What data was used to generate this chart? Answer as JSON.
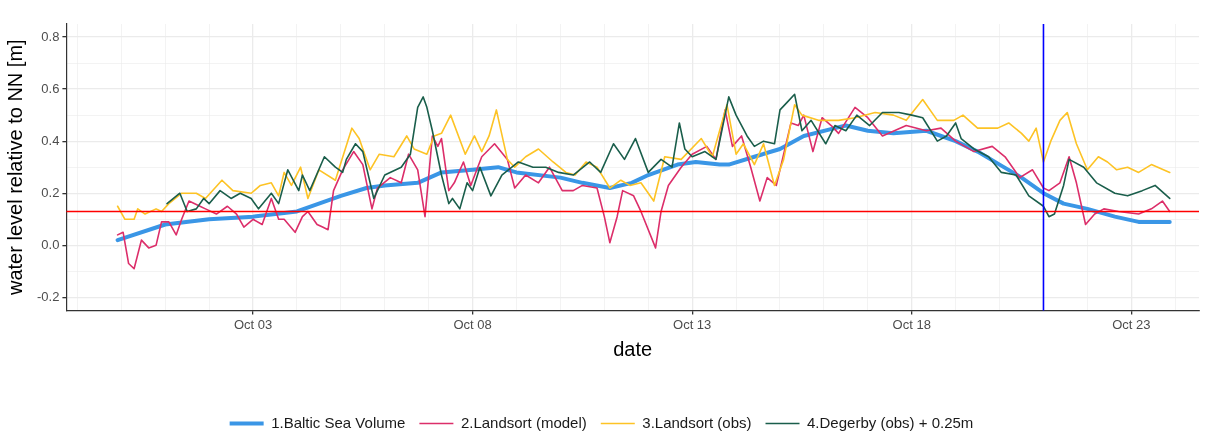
{
  "chart_data": {
    "type": "line",
    "xlabel": "date",
    "ylabel": "water level relative to NN [m]",
    "xlim": [
      "--09-28T18:00",
      "--10-24T13:00"
    ],
    "xticks": [
      {
        "value": "--09-29",
        "label": null
      },
      {
        "value": "--09-30",
        "label": null
      },
      {
        "value": "--10-01",
        "label": null
      },
      {
        "value": "--10-02",
        "label": null
      },
      {
        "value": "--10-03",
        "label": "Oct 03"
      },
      {
        "value": "--10-04",
        "label": null
      },
      {
        "value": "--10-05",
        "label": null
      },
      {
        "value": "--10-06",
        "label": null
      },
      {
        "value": "--10-07",
        "label": null
      },
      {
        "value": "--10-08",
        "label": "Oct 08"
      },
      {
        "value": "--10-09",
        "label": null
      },
      {
        "value": "--10-10",
        "label": null
      },
      {
        "value": "--10-11",
        "label": null
      },
      {
        "value": "--10-12",
        "label": null
      },
      {
        "value": "--10-13",
        "label": "Oct 13"
      },
      {
        "value": "--10-14",
        "label": null
      },
      {
        "value": "--10-15",
        "label": null
      },
      {
        "value": "--10-16",
        "label": null
      },
      {
        "value": "--10-17",
        "label": null
      },
      {
        "value": "--10-18",
        "label": "Oct 18"
      },
      {
        "value": "--10-19",
        "label": null
      },
      {
        "value": "--10-20",
        "label": null
      },
      {
        "value": "--10-21",
        "label": null
      },
      {
        "value": "--10-22",
        "label": null
      },
      {
        "value": "--10-23",
        "label": "Oct 23"
      },
      {
        "value": "--10-24",
        "label": null
      }
    ],
    "ylim": [
      -0.25,
      0.85
    ],
    "yticks": [
      -0.2,
      {
        "value": -0.1,
        "label": null
      },
      {
        "value": 0,
        "label": "0.0"
      },
      {
        "value": 0.1,
        "label": null
      },
      0.2,
      {
        "value": 0.3,
        "label": null
      },
      0.4,
      {
        "value": 0.5,
        "label": null
      },
      0.6,
      {
        "value": 0.7,
        "label": null
      },
      0.8
    ],
    "grid": true,
    "legend": "bottom",
    "marker": "none",
    "line_style": "solid",
    "ref_lines": [
      {
        "axis": "y",
        "value": 0.13,
        "color": "#ff0000"
      },
      {
        "axis": "x",
        "value": "--10-21",
        "color": "#0000ff"
      }
    ],
    "series": [
      {
        "name": "1.Baltic Sea Volume",
        "color": "#3a96e6",
        "x": [
          "--09-29T22:00",
          "--10-01T00:00",
          "--10-02T00:00",
          "--10-03T00:00",
          "--10-04T00:00",
          "--10-05T00:00",
          "--10-05T14:00",
          "--10-06T00:00",
          "--10-06T18:00",
          "--10-07T07:00",
          "--10-08T00:00",
          "--10-08T14:00",
          "--10-09T00:00",
          "--10-10T00:00",
          "--10-10T12:00",
          "--10-11T03:00",
          "--10-11T15:00",
          "--10-12T00:00",
          "--10-12T16:00",
          "--10-13T02:00",
          "--10-13T15:00",
          "--10-13T20:00",
          "--10-14T10:00",
          "--10-15T00:00",
          "--10-15T13:00",
          "--10-16T06:00",
          "--10-16T12:00",
          "--10-17T00:00",
          "--10-17T14:00",
          "--10-18T08:00",
          "--10-19T00:00",
          "--10-19T12:00",
          "--10-20T00:00",
          "--10-20T12:00",
          "--10-21T00:00",
          "--10-21T11:00",
          "--10-22T00:00",
          "--10-22T15:00",
          "--10-23T04:00",
          "--10-23T21:00"
        ],
        "values": [
          0.02,
          0.08,
          0.1,
          0.11,
          0.13,
          0.19,
          0.22,
          0.23,
          0.24,
          0.28,
          0.29,
          0.3,
          0.28,
          0.26,
          0.24,
          0.22,
          0.24,
          0.27,
          0.31,
          0.32,
          0.31,
          0.31,
          0.34,
          0.37,
          0.42,
          0.45,
          0.46,
          0.44,
          0.43,
          0.44,
          0.4,
          0.36,
          0.31,
          0.26,
          0.2,
          0.16,
          0.14,
          0.11,
          0.09,
          0.09
        ]
      },
      {
        "name": "2.Landsort (model)",
        "color": "#dc2e6a",
        "x": [
          "--09-29T22:00",
          "--09-30T01:00",
          "--09-30T04:00",
          "--09-30T07:00",
          "--09-30T11:00",
          "--09-30T15:00",
          "--09-30T19:00",
          "--09-30T22:00",
          "--10-01T02:00",
          "--10-01T06:00",
          "--10-01T09:00",
          "--10-01T13:00",
          "--10-01T19:00",
          "--10-01T22:00",
          "--10-02T04:00",
          "--10-02T10:00",
          "--10-02T15:00",
          "--10-02T19:00",
          "--10-03T00:00",
          "--10-03T05:00",
          "--10-03T10:00",
          "--10-03T14:00",
          "--10-03T17:00",
          "--10-03T23:00",
          "--10-04T03:00",
          "--10-04T06:00",
          "--10-04T11:00",
          "--10-04T14:00",
          "--10-04T17:00",
          "--10-04T20:00",
          "--10-05T01:00",
          "--10-05T07:00",
          "--10-05T12:00",
          "--10-05T17:00",
          "--10-05T20:00",
          "--10-06T03:00",
          "--10-06T09:00",
          "--10-06T13:00",
          "--10-06T18:00",
          "--10-06T22:00",
          "--10-07T02:00",
          "--10-07T05:00",
          "--10-07T07:00",
          "--10-07T11:00",
          "--10-07T14:00",
          "--10-07T19:00",
          "--10-07T23:00",
          "--10-08T05:00",
          "--10-08T12:00",
          "--10-08T19:00",
          "--10-08T23:00",
          "--10-09T05:00",
          "--10-09T12:00",
          "--10-09T18:00",
          "--10-10T01:00",
          "--10-10T07:00",
          "--10-10T12:00",
          "--10-10T20:00",
          "--10-11T00:00",
          "--10-11T03:00",
          "--10-11T07:00",
          "--10-11T10:00",
          "--10-11T16:00",
          "--10-11T20:00",
          "--10-12T04:00",
          "--10-12T07:00",
          "--10-12T11:00",
          "--10-12T18:00",
          "--10-13T00:00",
          "--10-13T08:00",
          "--10-13T13:00",
          "--10-13T18:00",
          "--10-13T22:00",
          "--10-14T03:00",
          "--10-14T08:00",
          "--10-14T13:00",
          "--10-14T17:00",
          "--10-14T22:00",
          "--10-15T06:00",
          "--10-15T10:00",
          "--10-15T13:00",
          "--10-15T18:00",
          "--10-15T23:00",
          "--10-16T04:00",
          "--10-16T08:00",
          "--10-16T17:00",
          "--10-17T00:00",
          "--10-17T08:00",
          "--10-17T21:00",
          "--10-18T08:00",
          "--10-18T16:00",
          "--10-19T00:00",
          "--10-19T10:00",
          "--10-19T20:00",
          "--10-20T03:00",
          "--10-20T11:00",
          "--10-20T18:00",
          "--10-21T00:00",
          "--10-21T03:00",
          "--10-21T09:00",
          "--10-21T14:00",
          "--10-21T18:00",
          "--10-21T23:00",
          "--10-22T04:00",
          "--10-22T09:00",
          "--10-22T17:00",
          "--10-23T04:00",
          "--10-23T11:00",
          "--10-23T17:00",
          "--10-23T21:00"
        ],
        "values": [
          0.04,
          0.05,
          -0.07,
          -0.09,
          0.02,
          -0.01,
          0.0,
          0.09,
          0.09,
          0.04,
          0.1,
          0.17,
          0.15,
          0.14,
          0.12,
          0.15,
          0.12,
          0.07,
          0.1,
          0.08,
          0.18,
          0.1,
          0.1,
          0.05,
          0.11,
          0.13,
          0.08,
          0.07,
          0.06,
          0.21,
          0.29,
          0.36,
          0.31,
          0.14,
          0.22,
          0.26,
          0.24,
          0.35,
          0.29,
          0.11,
          0.42,
          0.38,
          0.41,
          0.21,
          0.24,
          0.32,
          0.23,
          0.34,
          0.39,
          0.33,
          0.22,
          0.27,
          0.24,
          0.3,
          0.21,
          0.21,
          0.23,
          0.22,
          0.11,
          0.01,
          0.11,
          0.21,
          0.19,
          0.13,
          -0.01,
          0.13,
          0.23,
          0.3,
          0.35,
          0.38,
          0.33,
          0.52,
          0.38,
          0.42,
          0.3,
          0.17,
          0.26,
          0.23,
          0.47,
          0.46,
          0.5,
          0.36,
          0.49,
          0.46,
          0.43,
          0.53,
          0.49,
          0.42,
          0.46,
          0.44,
          0.45,
          0.4,
          0.36,
          0.38,
          0.34,
          0.26,
          0.29,
          0.22,
          0.21,
          0.24,
          0.34,
          0.24,
          0.08,
          0.12,
          0.14,
          0.13,
          0.12,
          0.14,
          0.17,
          0.13
        ]
      },
      {
        "name": "3.Landsort (obs)",
        "color": "#fdc325",
        "x": [
          "--09-29T22:00",
          "--09-30T02:00",
          "--09-30T07:00",
          "--09-30T09:00",
          "--09-30T13:00",
          "--09-30T19:00",
          "--09-30T22:00",
          "--10-01T02:00",
          "--10-01T09:00",
          "--10-01T17:00",
          "--10-01T22:00",
          "--10-02T07:00",
          "--10-02T13:00",
          "--10-02T23:00",
          "--10-03T04:00",
          "--10-03T10:00",
          "--10-03T14:00",
          "--10-03T17:00",
          "--10-03T21:00",
          "--10-04T02:00",
          "--10-04T06:00",
          "--10-04T12:00",
          "--10-04T21:00",
          "--10-05T06:00",
          "--10-05T10:00",
          "--10-05T16:00",
          "--10-05T21:00",
          "--10-06T05:00",
          "--10-06T12:00",
          "--10-06T16:00",
          "--10-06T23:00",
          "--10-07T03:00",
          "--10-07T07:00",
          "--10-07T12:00",
          "--10-07T20:00",
          "--10-08T01:00",
          "--10-08T05:00",
          "--10-08T09:00",
          "--10-08T13:00",
          "--10-08T19:00",
          "--10-08T23:00",
          "--10-09T05:00",
          "--10-09T12:00",
          "--10-09T20:00",
          "--10-10T03:00",
          "--10-10T08:00",
          "--10-10T14:00",
          "--10-10T20:00",
          "--10-11T03:00",
          "--10-11T09:00",
          "--10-11T14:00",
          "--10-11T20:00",
          "--10-12T03:00",
          "--10-12T09:00",
          "--10-12T18:00",
          "--10-13T05:00",
          "--10-13T11:00",
          "--10-13T19:00",
          "--10-14T00:00",
          "--10-14T04:00",
          "--10-14T10:00",
          "--10-14T15:00",
          "--10-14T21:00",
          "--10-15T02:00",
          "--10-15T08:00",
          "--10-15T12:00",
          "--10-15T21:00",
          "--10-16T08:00",
          "--10-16T17:00",
          "--10-17T04:00",
          "--10-17T14:00",
          "--10-17T21:00",
          "--10-18T06:00",
          "--10-18T14:00",
          "--10-18T23:00",
          "--10-19T04:00",
          "--10-19T12:00",
          "--10-19T23:00",
          "--10-20T05:00",
          "--10-20T12:00",
          "--10-20T16:00",
          "--10-20T20:00",
          "--10-21T00:00",
          "--10-21T04:00",
          "--10-21T09:00",
          "--10-21T13:00",
          "--10-21T18:00",
          "--10-22T00:00",
          "--10-22T06:00",
          "--10-22T11:00",
          "--10-22T16:00",
          "--10-22T22:00",
          "--10-23T04:00",
          "--10-23T11:00",
          "--10-23T21:00"
        ],
        "values": [
          0.15,
          0.1,
          0.1,
          0.14,
          0.12,
          0.14,
          0.13,
          0.16,
          0.2,
          0.2,
          0.18,
          0.25,
          0.21,
          0.2,
          0.23,
          0.24,
          0.19,
          0.28,
          0.23,
          0.3,
          0.18,
          0.29,
          0.25,
          0.45,
          0.41,
          0.29,
          0.35,
          0.34,
          0.42,
          0.37,
          0.35,
          0.42,
          0.43,
          0.5,
          0.35,
          0.42,
          0.36,
          0.42,
          0.52,
          0.33,
          0.3,
          0.34,
          0.37,
          0.32,
          0.28,
          0.27,
          0.32,
          0.3,
          0.22,
          0.25,
          0.23,
          0.24,
          0.17,
          0.34,
          0.33,
          0.41,
          0.34,
          0.54,
          0.35,
          0.39,
          0.31,
          0.39,
          0.23,
          0.33,
          0.54,
          0.5,
          0.48,
          0.48,
          0.49,
          0.51,
          0.5,
          0.48,
          0.56,
          0.48,
          0.48,
          0.5,
          0.45,
          0.45,
          0.47,
          0.43,
          0.4,
          0.45,
          0.32,
          0.4,
          0.48,
          0.51,
          0.39,
          0.29,
          0.34,
          0.32,
          0.29,
          0.3,
          0.28,
          0.31,
          0.28
        ]
      },
      {
        "name": "4.Degerby (obs) + 0.25m",
        "color": "#1a5e4b",
        "x": [
          "--10-01T01:00",
          "--10-01T08:00",
          "--10-01T12:00",
          "--10-01T17:00",
          "--10-01T21:00",
          "--10-02T00:00",
          "--10-02T06:00",
          "--10-02T12:00",
          "--10-02T17:00",
          "--10-02T23:00",
          "--10-03T03:00",
          "--10-03T10:00",
          "--10-03T14:00",
          "--10-03T19:00",
          "--10-04T01:00",
          "--10-04T03:00",
          "--10-04T07:00",
          "--10-04T15:00",
          "--10-04T21:00",
          "--10-05T01:00",
          "--10-05T03:00",
          "--10-05T08:00",
          "--10-05T12:00",
          "--10-05T18:00",
          "--10-06T00:00",
          "--10-06T09:00",
          "--10-06T14:00",
          "--10-06T18:00",
          "--10-06T21:00",
          "--10-06T23:00",
          "--10-07T02:00",
          "--10-07T07:00",
          "--10-07T11:00",
          "--10-07T13:00",
          "--10-07T17:00",
          "--10-07T21:00",
          "--10-08T00:00",
          "--10-08T04:00",
          "--10-08T10:00",
          "--10-08T16:00",
          "--10-09T01:00",
          "--10-09T09:00",
          "--10-09T16:00",
          "--10-09T23:00",
          "--10-10T07:00",
          "--10-10T16:00",
          "--10-10T22:00",
          "--10-11T05:00",
          "--10-11T11:00",
          "--10-11T17:00",
          "--10-12T00:00",
          "--10-12T07:00",
          "--10-12T13:00",
          "--10-12T17:00",
          "--10-12T20:00",
          "--10-13T00:00",
          "--10-13T07:00",
          "--10-13T13:00",
          "--10-13T20:00",
          "--10-14T00:00",
          "--10-14T06:00",
          "--10-14T10:00",
          "--10-14T15:00",
          "--10-14T21:00",
          "--10-15T00:00",
          "--10-15T04:00",
          "--10-15T08:00",
          "--10-15T12:00",
          "--10-15T17:00",
          "--10-16T01:00",
          "--10-16T06:00",
          "--10-16T12:00",
          "--10-16T18:00",
          "--10-17T01:00",
          "--10-17T08:00",
          "--10-17T17:00",
          "--10-18T00:00",
          "--10-18T06:00",
          "--10-18T14:00",
          "--10-18T19:00",
          "--10-19T00:00",
          "--10-19T03:00",
          "--10-19T10:00",
          "--10-19T18:00",
          "--10-20T01:00",
          "--10-20T09:00",
          "--10-20T16:00",
          "--10-21T00:00",
          "--10-21T03:00",
          "--10-21T06:00",
          "--10-21T11:00",
          "--10-21T14:00",
          "--10-21T22:00",
          "--10-22T05:00",
          "--10-22T15:00",
          "--10-22T22:00",
          "--10-23T06:00",
          "--10-23T13:00",
          "--10-23T21:00"
        ],
        "values": [
          0.16,
          0.2,
          0.13,
          0.14,
          0.18,
          0.16,
          0.21,
          0.18,
          0.2,
          0.18,
          0.14,
          0.2,
          0.16,
          0.29,
          0.21,
          0.27,
          0.21,
          0.34,
          0.3,
          0.28,
          0.33,
          0.39,
          0.36,
          0.18,
          0.27,
          0.3,
          0.35,
          0.53,
          0.57,
          0.53,
          0.44,
          0.27,
          0.16,
          0.18,
          0.14,
          0.24,
          0.21,
          0.3,
          0.19,
          0.27,
          0.32,
          0.3,
          0.3,
          0.28,
          0.27,
          0.32,
          0.28,
          0.39,
          0.33,
          0.41,
          0.28,
          0.33,
          0.3,
          0.47,
          0.37,
          0.34,
          0.36,
          0.33,
          0.57,
          0.5,
          0.42,
          0.38,
          0.4,
          0.39,
          0.52,
          0.55,
          0.58,
          0.44,
          0.48,
          0.39,
          0.46,
          0.44,
          0.5,
          0.46,
          0.51,
          0.51,
          0.5,
          0.49,
          0.4,
          0.42,
          0.47,
          0.41,
          0.37,
          0.34,
          0.28,
          0.27,
          0.19,
          0.15,
          0.11,
          0.12,
          0.23,
          0.33,
          0.3,
          0.24,
          0.2,
          0.19,
          0.21,
          0.23,
          0.18
        ]
      }
    ]
  }
}
